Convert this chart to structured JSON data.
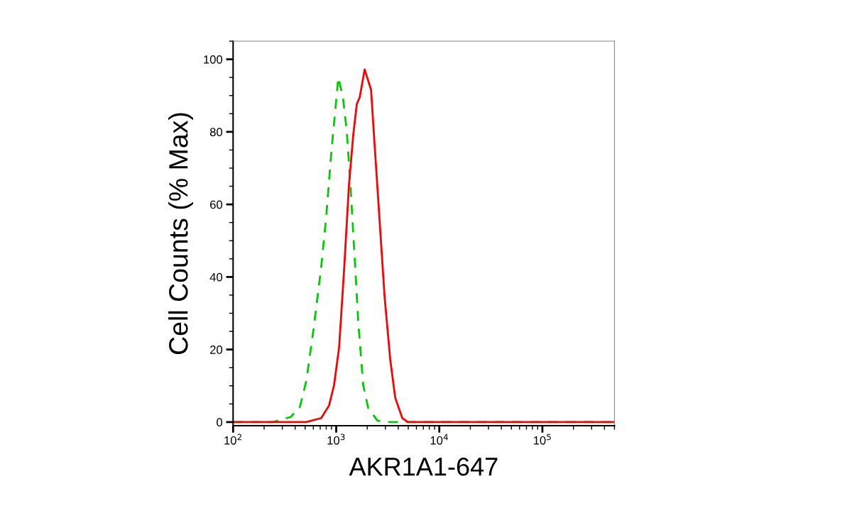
{
  "chart_data": {
    "type": "line",
    "xlabel": "AKR1A1-647",
    "ylabel": "Cell Counts (% Max)",
    "log": "x",
    "xlim": [
      100,
      500000
    ],
    "xticks": [
      {
        "value": 100,
        "label": "10$^{2}$"
      },
      {
        "value": 1000,
        "label": "10$^{3}$"
      },
      {
        "value": 10000,
        "label": "10$^{4}$"
      },
      {
        "value": 100000,
        "label": "10$^{5}$"
      }
    ],
    "ylim": [
      -1,
      105
    ],
    "yticks": [
      0,
      20,
      40,
      60,
      80,
      100
    ],
    "grid": false,
    "legend": false,
    "marker": "none",
    "series": [
      {
        "color": "#00cc00",
        "line_style": "dashed",
        "x": [
          100,
          243,
          362,
          445,
          513,
          601,
          716,
          800,
          895,
          985,
          1049,
          1163,
          1268,
          1373,
          1502,
          1637,
          1828,
          2042,
          2512,
          3138,
          500000
        ],
        "values": [
          0,
          0,
          1.4,
          4.2,
          11.4,
          25.3,
          42.8,
          56.6,
          74.1,
          86.7,
          95,
          89.5,
          80,
          65.4,
          46.6,
          27.6,
          10.2,
          3.9,
          0.4,
          0,
          0
        ]
      },
      {
        "color": "#ff0000",
        "line_style": "solid",
        "x": [
          100,
          511,
          716,
          853,
          953,
          1067,
          1191,
          1330,
          1465,
          1585,
          1690,
          1888,
          2178,
          2357,
          2635,
          2946,
          3344,
          3737,
          4375,
          4975,
          500000
        ],
        "values": [
          0,
          0,
          1.1,
          4.6,
          10.2,
          20.6,
          41.7,
          65.4,
          79.3,
          87.7,
          89.5,
          97.2,
          91.6,
          76.5,
          55.6,
          34.6,
          17.2,
          6.7,
          1.1,
          0,
          0
        ]
      }
    ]
  }
}
